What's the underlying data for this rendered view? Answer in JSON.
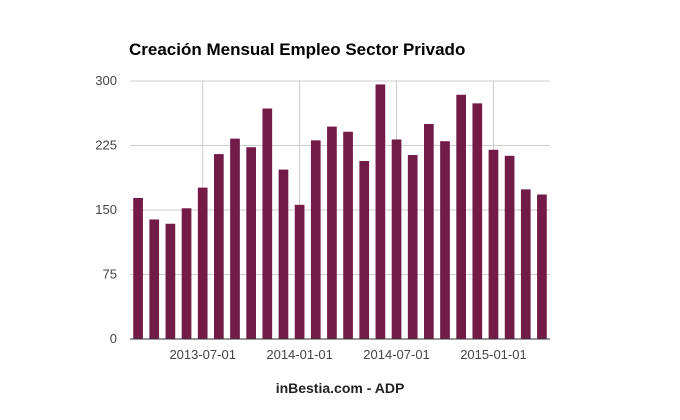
{
  "chart_data": {
    "type": "bar",
    "title": "Creación Mensual Empleo Sector Privado",
    "source": "inBestia.com - ADP",
    "xlabel": "",
    "ylabel": "",
    "ylim": [
      0,
      300
    ],
    "yticks": [
      0,
      75,
      150,
      225,
      300
    ],
    "grid": true,
    "bar_color": "#731b47",
    "categories": [
      "2013-03",
      "2013-04",
      "2013-05",
      "2013-06",
      "2013-07",
      "2013-08",
      "2013-09",
      "2013-10",
      "2013-11",
      "2013-12",
      "2014-01",
      "2014-02",
      "2014-03",
      "2014-04",
      "2014-05",
      "2014-06",
      "2014-07",
      "2014-08",
      "2014-09",
      "2014-10",
      "2014-11",
      "2014-12",
      "2015-01",
      "2015-02",
      "2015-03",
      "2015-04"
    ],
    "values": [
      164,
      139,
      134,
      152,
      176,
      215,
      233,
      223,
      268,
      197,
      156,
      231,
      247,
      241,
      207,
      296,
      232,
      214,
      250,
      230,
      284,
      274,
      220,
      213,
      174,
      168
    ],
    "xticks": [
      {
        "label": "2013-07-01",
        "category": "2013-07"
      },
      {
        "label": "2014-01-01",
        "category": "2014-01"
      },
      {
        "label": "2014-07-01",
        "category": "2014-07"
      },
      {
        "label": "2015-01-01",
        "category": "2015-01"
      }
    ]
  }
}
